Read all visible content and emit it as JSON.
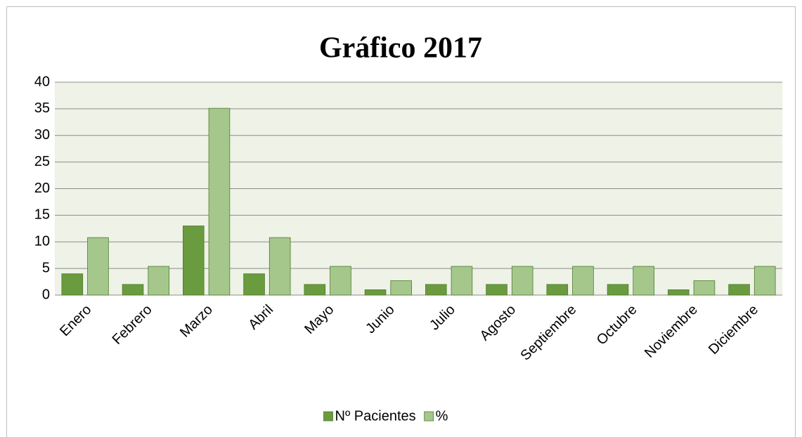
{
  "chart_data": {
    "type": "bar",
    "title": "Gráfico 2017",
    "categories": [
      "Enero",
      "Febrero",
      "Marzo",
      "Abril",
      "Mayo",
      "Junio",
      "Julio",
      "Agosto",
      "Septiembre",
      "Octubre",
      "Noviembre",
      "Diciembre"
    ],
    "series": [
      {
        "name": "Nº Pacientes",
        "color": "#6a9b3e",
        "values": [
          4,
          2,
          13,
          4,
          2,
          1,
          2,
          2,
          2,
          2,
          1,
          2
        ]
      },
      {
        "name": "%",
        "color": "#a5c78c",
        "values": [
          10.8,
          5.4,
          35.1,
          10.8,
          5.4,
          2.7,
          5.4,
          5.4,
          5.4,
          5.4,
          2.7,
          5.4
        ]
      }
    ],
    "ylim": [
      0,
      40
    ],
    "yticks": [
      0,
      5,
      10,
      15,
      20,
      25,
      30,
      35,
      40
    ],
    "grid": true,
    "legend": "bottom"
  }
}
